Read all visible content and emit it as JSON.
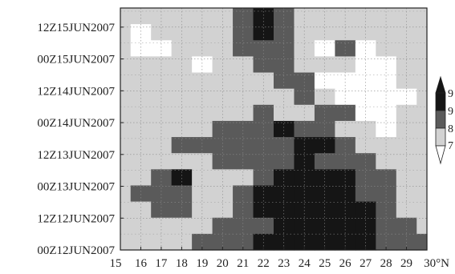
{
  "chart_data": {
    "type": "heatmap",
    "title": "",
    "xlabel": "",
    "ylabel": "",
    "x_ticks": [
      "15",
      "16",
      "17",
      "18",
      "19",
      "20",
      "21",
      "22",
      "23",
      "24",
      "25",
      "26",
      "27",
      "28",
      "29",
      "30°N"
    ],
    "x_range": [
      15,
      30
    ],
    "y_ticks": [
      "00Z12JUN2007",
      "12Z12JUN2007",
      "00Z13JUN2007",
      "12Z13JUN2007",
      "00Z14JUN2007",
      "12Z14JUN2007",
      "00Z15JUN2007",
      "12Z15JUN2007"
    ],
    "grid": true,
    "colorbar": {
      "position": "right",
      "labels": [
        "9",
        "9",
        "8",
        "7"
      ],
      "colors": [
        "#151515",
        "#5a5a5a",
        "#d2d2d2",
        "#ffffff"
      ]
    },
    "lat_values": [
      15,
      16,
      17,
      18,
      19,
      20,
      21,
      22,
      23,
      24,
      25,
      26,
      27,
      28,
      29,
      30
    ],
    "time_steps_hours": [
      0,
      6,
      12,
      18,
      24,
      30,
      36,
      42,
      48,
      54,
      60,
      66,
      72,
      78,
      84
    ],
    "class_legend": {
      "0": "below lowest contour (white)",
      "1": "light gray",
      "2": "dark gray",
      "3": "near black"
    },
    "grid_rows_top_to_bottom": [
      [
        1,
        1,
        1,
        1,
        1,
        1,
        2,
        3,
        2,
        1,
        1,
        1,
        1,
        1,
        1,
        1
      ],
      [
        1,
        0,
        1,
        1,
        1,
        1,
        2,
        3,
        2,
        1,
        1,
        1,
        1,
        1,
        1,
        1
      ],
      [
        1,
        0,
        0,
        1,
        1,
        1,
        2,
        2,
        2,
        1,
        0,
        2,
        0,
        1,
        1,
        1
      ],
      [
        1,
        1,
        1,
        1,
        0,
        1,
        1,
        2,
        2,
        1,
        1,
        1,
        0,
        0,
        1,
        1
      ],
      [
        1,
        1,
        1,
        1,
        1,
        1,
        1,
        1,
        2,
        2,
        0,
        0,
        0,
        0,
        1,
        1
      ],
      [
        1,
        1,
        1,
        1,
        1,
        1,
        1,
        1,
        1,
        2,
        1,
        0,
        0,
        0,
        0,
        1
      ],
      [
        1,
        1,
        1,
        1,
        1,
        1,
        1,
        2,
        1,
        1,
        2,
        2,
        0,
        0,
        1,
        1
      ],
      [
        1,
        1,
        1,
        1,
        1,
        2,
        2,
        2,
        3,
        2,
        2,
        1,
        1,
        0,
        1,
        1
      ],
      [
        1,
        1,
        1,
        2,
        2,
        2,
        2,
        2,
        2,
        3,
        3,
        2,
        1,
        1,
        1,
        1
      ],
      [
        1,
        1,
        1,
        1,
        1,
        2,
        2,
        2,
        2,
        3,
        2,
        2,
        2,
        1,
        1,
        1
      ],
      [
        1,
        1,
        2,
        3,
        1,
        1,
        1,
        2,
        3,
        3,
        3,
        3,
        2,
        2,
        1,
        1
      ],
      [
        1,
        2,
        2,
        2,
        1,
        1,
        2,
        3,
        3,
        3,
        3,
        3,
        2,
        2,
        1,
        1
      ],
      [
        1,
        1,
        2,
        2,
        1,
        1,
        2,
        3,
        3,
        3,
        3,
        3,
        3,
        2,
        1,
        1
      ],
      [
        1,
        1,
        1,
        1,
        1,
        2,
        2,
        2,
        3,
        3,
        3,
        3,
        3,
        2,
        2,
        1
      ],
      [
        1,
        1,
        1,
        1,
        2,
        2,
        2,
        3,
        3,
        3,
        3,
        3,
        3,
        2,
        2,
        2
      ]
    ]
  }
}
